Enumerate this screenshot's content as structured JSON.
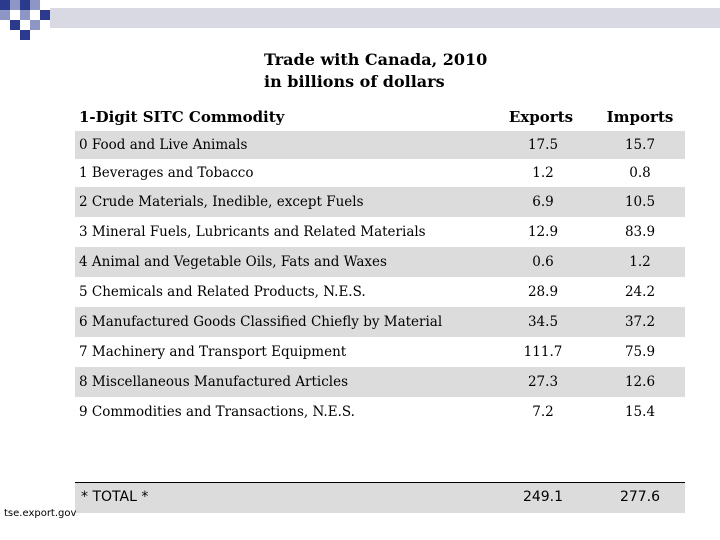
{
  "title": {
    "line1": "Trade with Canada, 2010",
    "line2": "in billions of dollars"
  },
  "headers": {
    "commodity": "1-Digit SITC Commodity",
    "exports": "Exports",
    "imports": "Imports"
  },
  "rows": [
    {
      "name": "0 Food and Live Animals",
      "exports": "17.5",
      "imports": "15.7"
    },
    {
      "name": "1 Beverages and Tobacco",
      "exports": "1.2",
      "imports": "0.8"
    },
    {
      "name": "2 Crude Materials, Inedible, except Fuels",
      "exports": "6.9",
      "imports": "10.5"
    },
    {
      "name": "3 Mineral Fuels, Lubricants and Related Materials",
      "exports": "12.9",
      "imports": "83.9"
    },
    {
      "name": "4 Animal and Vegetable Oils, Fats and Waxes",
      "exports": "0.6",
      "imports": "1.2"
    },
    {
      "name": "5 Chemicals and Related Products, N.E.S.",
      "exports": "28.9",
      "imports": "24.2"
    },
    {
      "name": "6 Manufactured Goods Classified Chiefly by Material",
      "exports": "34.5",
      "imports": "37.2"
    },
    {
      "name": "7 Machinery and Transport Equipment",
      "exports": "111.7",
      "imports": "75.9"
    },
    {
      "name": "8 Miscellaneous Manufactured Articles",
      "exports": "27.3",
      "imports": "12.6"
    },
    {
      "name": "9 Commodities and Transactions, N.E.S.",
      "exports": "7.2",
      "imports": "15.4"
    }
  ],
  "total": {
    "name": "* TOTAL *",
    "exports": "249.1",
    "imports": "277.6"
  },
  "source": "tse.export.gov",
  "colors": {
    "row_shade": "#dcdcdc",
    "corner_dark": "#2b3a8c",
    "corner_light": "#8e96c6",
    "top_bar": "#d9d9e3"
  }
}
